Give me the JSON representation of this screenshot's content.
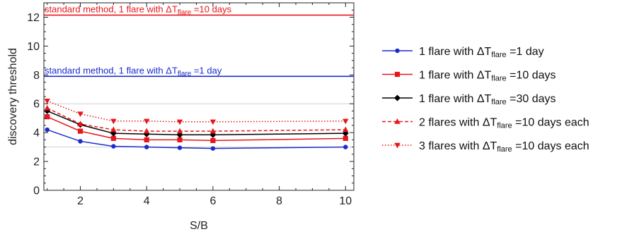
{
  "chart_data": {
    "type": "line",
    "xlabel": "S/B",
    "ylabel": "discovery threshold",
    "xlim": [
      0.9,
      10.25
    ],
    "ylim": [
      0,
      13
    ],
    "xticks": [
      2,
      4,
      6,
      8,
      10
    ],
    "yticks": [
      0,
      2,
      4,
      6,
      8,
      10,
      12
    ],
    "grid": "horizontal lines at 3 and 6",
    "x": [
      1,
      2,
      3,
      4,
      5,
      6,
      10
    ],
    "series": [
      {
        "name_pre": "1 flare with ΔT",
        "name_sub": "flare",
        "name_post": " =1 day",
        "color": "#1a2ccc",
        "dash": "solid",
        "marker": "circle",
        "values": [
          4.2,
          3.4,
          3.05,
          3.0,
          2.95,
          2.9,
          3.0
        ]
      },
      {
        "name_pre": "1 flare with ΔT",
        "name_sub": "flare",
        "name_post": " =10 days",
        "color": "#e8161b",
        "dash": "solid",
        "marker": "square",
        "values": [
          5.1,
          4.1,
          3.6,
          3.5,
          3.5,
          3.45,
          3.6
        ]
      },
      {
        "name_pre": "1 flare with ΔT",
        "name_sub": "flare",
        "name_post": " =30 days",
        "color": "#000000",
        "dash": "solid",
        "marker": "diamond",
        "values": [
          5.5,
          4.55,
          3.95,
          3.9,
          3.85,
          3.85,
          3.95
        ]
      },
      {
        "name_pre": "2 flares with ΔT",
        "name_sub": "flare",
        "name_post": " =10 days each",
        "color": "#e8161b",
        "dash": "dashed",
        "marker": "triangle-up",
        "values": [
          5.7,
          4.6,
          4.2,
          4.1,
          4.1,
          4.1,
          4.2
        ]
      },
      {
        "name_pre": "3 flares with ΔT",
        "name_sub": "flare",
        "name_post": " =10 days each",
        "color": "#e8161b",
        "dash": "dotted",
        "marker": "triangle-down",
        "values": [
          6.2,
          5.3,
          4.8,
          4.8,
          4.75,
          4.75,
          4.8
        ]
      }
    ],
    "reference_lines": [
      {
        "y": 12.15,
        "color": "#e8161b",
        "label_pre": "standard method, 1 flare with ΔT",
        "label_sub": "flare",
        "label_post": " =10 days"
      },
      {
        "y": 7.9,
        "color": "#1a2ccc",
        "label_pre": "standard method, 1 flare with ΔT",
        "label_sub": "flare",
        "label_post": " =1 day"
      }
    ],
    "legend_position": "right"
  }
}
